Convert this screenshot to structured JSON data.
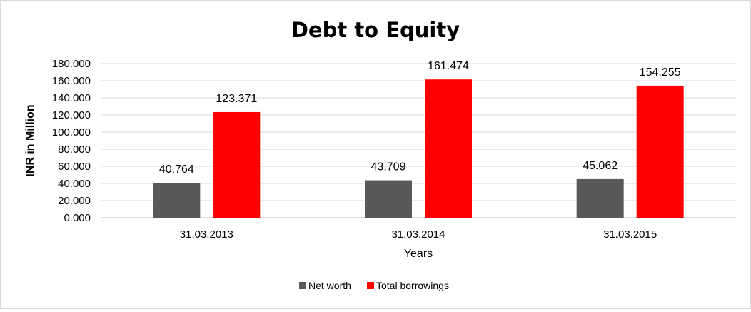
{
  "chart_data": {
    "type": "bar",
    "title": "Debt to Equity",
    "xlabel": "Years",
    "ylabel": "INR in Million",
    "categories": [
      "31.03.2013",
      "31.03.2014",
      "31.03.2015"
    ],
    "series": [
      {
        "name": "Net worth",
        "values": [
          40.764,
          43.709,
          45.062
        ],
        "labels": [
          "40.764",
          "43.709",
          "45.062"
        ],
        "color": "#595959"
      },
      {
        "name": "Total borrowings",
        "values": [
          123.371,
          161.474,
          154.255
        ],
        "labels": [
          "123.371",
          "161.474",
          "154.255"
        ],
        "color": "#ff0000"
      }
    ],
    "ylim": [
      0,
      180
    ],
    "yticks": [
      "0.000",
      "20.000",
      "40.000",
      "60.000",
      "80.000",
      "100.000",
      "120.000",
      "140.000",
      "160.000",
      "180.000"
    ],
    "grid": true,
    "legend_position": "bottom",
    "colors": {
      "gridline": "#d9d9d9",
      "axis": "#bfbfbf"
    }
  }
}
